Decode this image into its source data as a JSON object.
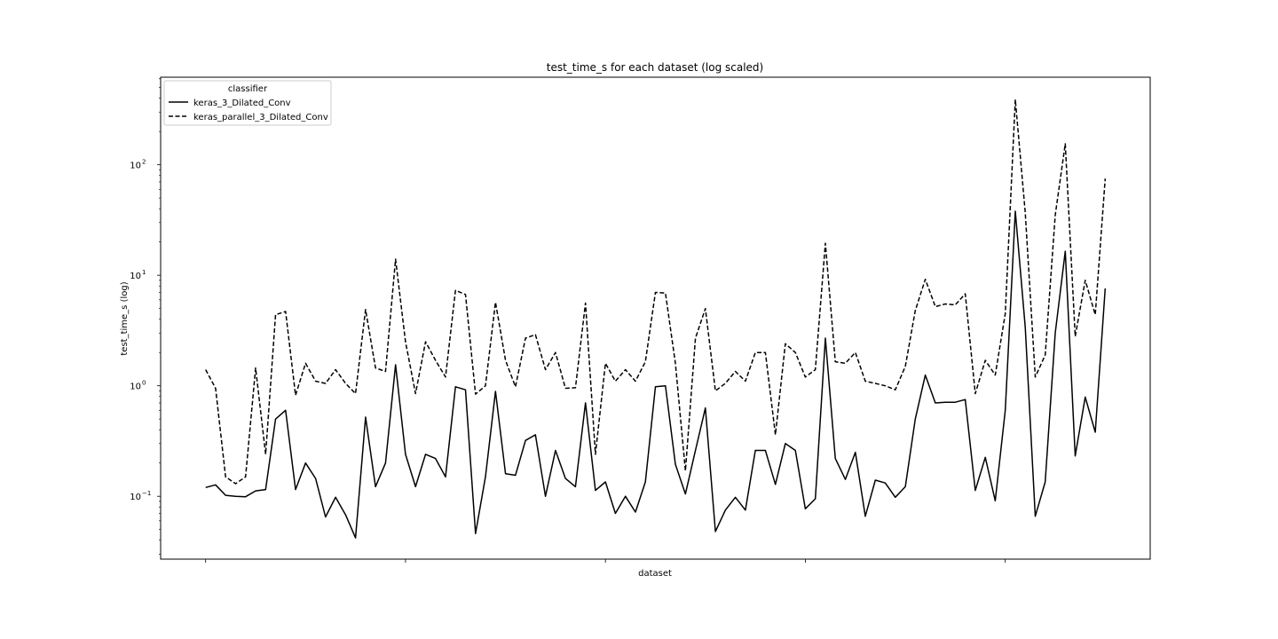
{
  "chart_data": {
    "type": "line",
    "title": "test_time_s for each dataset (log scaled)",
    "xlabel": "dataset",
    "ylabel": "test_time_s (log)",
    "yscale": "log",
    "ylim": [
      0.027,
      620
    ],
    "xlim": [
      -4.5,
      94.5
    ],
    "x_ticks": [
      0,
      20,
      40,
      60,
      80
    ],
    "y_ticks": [
      {
        "value": 0.1,
        "base": "10",
        "exp": "−1"
      },
      {
        "value": 1,
        "base": "10",
        "exp": "0"
      },
      {
        "value": 10,
        "base": "10",
        "exp": "1"
      },
      {
        "value": 100,
        "base": "10",
        "exp": "2"
      }
    ],
    "grid": false,
    "legend": {
      "title": "classifier",
      "position": "top-left"
    },
    "x": [
      0,
      1,
      2,
      3,
      4,
      5,
      6,
      7,
      8,
      9,
      10,
      11,
      12,
      13,
      14,
      15,
      16,
      17,
      18,
      19,
      20,
      21,
      22,
      23,
      24,
      25,
      26,
      27,
      28,
      29,
      30,
      31,
      32,
      33,
      34,
      35,
      36,
      37,
      38,
      39,
      40,
      41,
      42,
      43,
      44,
      45,
      46,
      47,
      48,
      49,
      50,
      51,
      52,
      53,
      54,
      55,
      56,
      57,
      58,
      59,
      60,
      61,
      62,
      63,
      64,
      65,
      66,
      67,
      68,
      69,
      70,
      71,
      72,
      73,
      74,
      75,
      76,
      77,
      78,
      79,
      80,
      81,
      82,
      83,
      84,
      85,
      86,
      87,
      88,
      89,
      90
    ],
    "series": [
      {
        "name": "keras_3_Dilated_Conv",
        "dash": "solid",
        "color": "#000000",
        "values": [
          0.12,
          0.127,
          0.102,
          0.1,
          0.099,
          0.112,
          0.115,
          0.5,
          0.6,
          0.115,
          0.2,
          0.145,
          0.065,
          0.098,
          0.068,
          0.042,
          0.52,
          0.122,
          0.2,
          1.55,
          0.24,
          0.122,
          0.24,
          0.22,
          0.15,
          0.98,
          0.92,
          0.046,
          0.15,
          0.89,
          0.16,
          0.155,
          0.32,
          0.36,
          0.1,
          0.26,
          0.145,
          0.122,
          0.7,
          0.113,
          0.135,
          0.07,
          0.1,
          0.072,
          0.135,
          0.98,
          1.0,
          0.195,
          0.105,
          0.26,
          0.63,
          0.048,
          0.075,
          0.098,
          0.075,
          0.26,
          0.26,
          0.128,
          0.3,
          0.26,
          0.077,
          0.095,
          2.7,
          0.22,
          0.142,
          0.25,
          0.066,
          0.14,
          0.132,
          0.098,
          0.122,
          0.5,
          1.25,
          0.7,
          0.71,
          0.71,
          0.75,
          0.113,
          0.225,
          0.091,
          0.6,
          38,
          3.4,
          0.066,
          0.135,
          3.0,
          16.5,
          0.232,
          0.79,
          0.38,
          7.6
        ]
      },
      {
        "name": "keras_parallel_3_Dilated_Conv",
        "dash": "dashed",
        "color": "#000000",
        "values": [
          1.4,
          0.95,
          0.15,
          0.13,
          0.15,
          1.45,
          0.24,
          4.4,
          4.7,
          0.82,
          1.6,
          1.1,
          1.05,
          1.4,
          1.05,
          0.85,
          4.9,
          1.45,
          1.35,
          14,
          2.5,
          0.85,
          2.5,
          1.7,
          1.2,
          7.3,
          6.7,
          0.84,
          1.0,
          5.7,
          1.7,
          0.98,
          2.7,
          2.9,
          1.4,
          2.0,
          0.95,
          0.96,
          5.6,
          0.24,
          1.6,
          1.1,
          1.4,
          1.1,
          1.65,
          7.0,
          6.9,
          1.6,
          0.17,
          2.7,
          5.0,
          0.9,
          1.05,
          1.35,
          1.1,
          2.0,
          2.0,
          0.36,
          2.4,
          2.0,
          1.2,
          1.4,
          19.5,
          1.65,
          1.6,
          2.0,
          1.1,
          1.05,
          1.0,
          0.92,
          1.5,
          4.8,
          9.2,
          5.2,
          5.5,
          5.4,
          6.8,
          0.85,
          1.7,
          1.25,
          4.5,
          390,
          37,
          1.2,
          1.9,
          35,
          155,
          2.8,
          9.0,
          4.4,
          75
        ]
      }
    ]
  }
}
